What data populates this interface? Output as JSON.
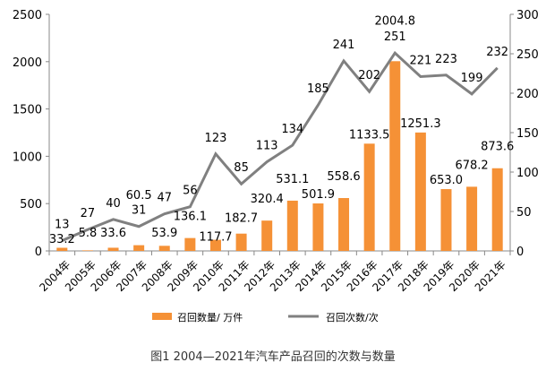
{
  "chart_data": {
    "type": "bar+line",
    "categories": [
      "2004年",
      "2005年",
      "2006年",
      "2007年",
      "2008年",
      "2009年",
      "2010年",
      "2011年",
      "2012年",
      "2013年",
      "2014年",
      "2015年",
      "2016年",
      "2017年",
      "2018年",
      "2019年",
      "2020年",
      "2021年"
    ],
    "series": [
      {
        "name": "召回数量/ 万件",
        "type": "bar",
        "axis": "left",
        "color": "#f59136",
        "values": [
          33.2,
          5.8,
          33.6,
          60.5,
          53.9,
          136.1,
          117.7,
          182.7,
          320.4,
          531.1,
          501.9,
          558.6,
          1133.5,
          2004.8,
          1251.3,
          653.0,
          678.2,
          873.6
        ],
        "labels": [
          "33.2",
          "5.8",
          "33.6",
          "60.5",
          "53.9",
          "136.1",
          "117.7",
          "182.7",
          "320.4",
          "531.1",
          "501.9",
          "558.6",
          "1133.5",
          "2004.8",
          "1251.3",
          "653.0",
          "678.2",
          "873.6"
        ]
      },
      {
        "name": "召回次数/次",
        "type": "line",
        "axis": "right",
        "color": "#808080",
        "values": [
          13,
          27,
          40,
          31,
          47,
          56,
          123,
          85,
          113,
          134,
          185,
          241,
          202,
          251,
          221,
          223,
          199,
          232
        ],
        "labels": [
          "13",
          "27",
          "40",
          "31",
          "47",
          "56",
          "123",
          "85",
          "113",
          "134",
          "185",
          "241",
          "202",
          "251",
          "221",
          "223",
          "199",
          "232"
        ]
      }
    ],
    "left_axis": {
      "range": [
        0,
        2500
      ],
      "ticks": [
        "0",
        "500",
        "1000",
        "1500",
        "2000",
        "2500"
      ]
    },
    "right_axis": {
      "range": [
        0,
        300
      ],
      "ticks": [
        "0",
        "50",
        "100",
        "150",
        "200",
        "250",
        "300"
      ]
    },
    "grid": false,
    "legend": "bottom",
    "caption": "图1   2004—2021年汽车产品召回的次数与数量"
  }
}
